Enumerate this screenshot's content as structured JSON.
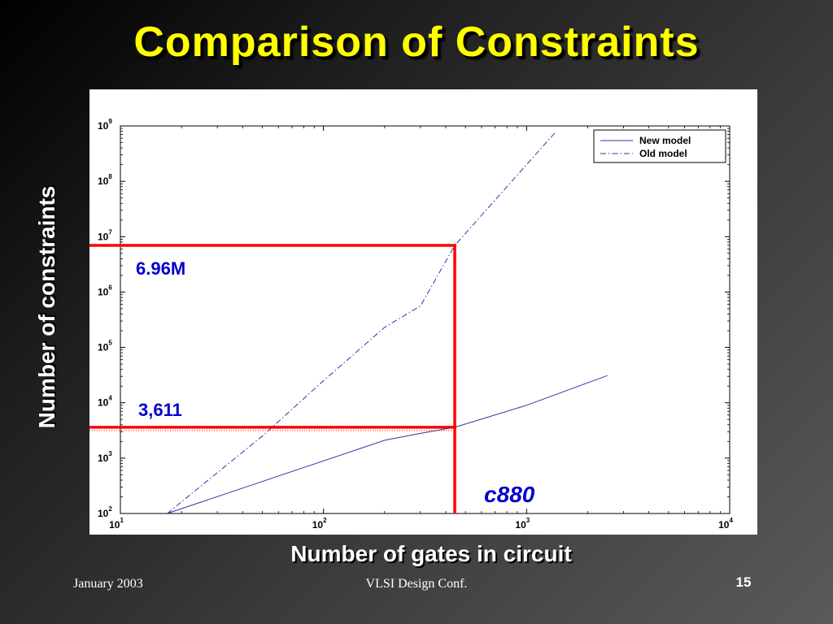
{
  "slide": {
    "title": "Comparison of Constraints",
    "footer_left": "January 2003",
    "footer_center": "VLSI Design Conf.",
    "page_number": "15"
  },
  "colors": {
    "background": "#2a2a2a",
    "title": "#ffff00",
    "highlight": "#ff0000",
    "annotation": "#0000cc",
    "series": "#3333aa"
  },
  "chart_data": {
    "type": "line",
    "x_scale": "log",
    "y_scale": "log",
    "xlim": [
      10,
      10000
    ],
    "ylim": [
      100,
      1000000000
    ],
    "xlabel": "Number of gates in circuit",
    "ylabel": "Number of constraints",
    "legend_position": "top-right",
    "x_tick_labels": [
      {
        "value": 10,
        "base": "10",
        "exp": "1"
      },
      {
        "value": 100,
        "base": "10",
        "exp": "2"
      },
      {
        "value": 1000,
        "base": "10",
        "exp": "3"
      },
      {
        "value": 10000,
        "base": "10",
        "exp": "4"
      }
    ],
    "y_tick_labels": [
      {
        "value": 100,
        "base": "10",
        "exp": "2"
      },
      {
        "value": 1000,
        "base": "10",
        "exp": "3"
      },
      {
        "value": 10000,
        "base": "10",
        "exp": "4"
      },
      {
        "value": 100000,
        "base": "10",
        "exp": "5"
      },
      {
        "value": 1000000,
        "base": "10",
        "exp": "6"
      },
      {
        "value": 10000000,
        "base": "10",
        "exp": "7"
      },
      {
        "value": 100000000,
        "base": "10",
        "exp": "8"
      },
      {
        "value": 1000000000,
        "base": "10",
        "exp": "9"
      }
    ],
    "series": [
      {
        "name": "New model",
        "style": "solid",
        "x": [
          17,
          200,
          300,
          443,
          1000,
          2500
        ],
        "y": [
          100,
          2100,
          2800,
          3611,
          9000,
          31000
        ]
      },
      {
        "name": "Old model",
        "style": "dashdot",
        "x": [
          17,
          50,
          100,
          200,
          300,
          443,
          1000,
          1400
        ],
        "y": [
          100,
          2500,
          25000,
          230000,
          560000,
          6960000,
          200000000,
          800000000
        ]
      }
    ],
    "annotations": [
      {
        "text": "6.96M",
        "x": 443,
        "y": 6960000
      },
      {
        "text": "3,611",
        "x": 443,
        "y": 3611
      },
      {
        "text": "c880",
        "x": 443
      }
    ]
  }
}
